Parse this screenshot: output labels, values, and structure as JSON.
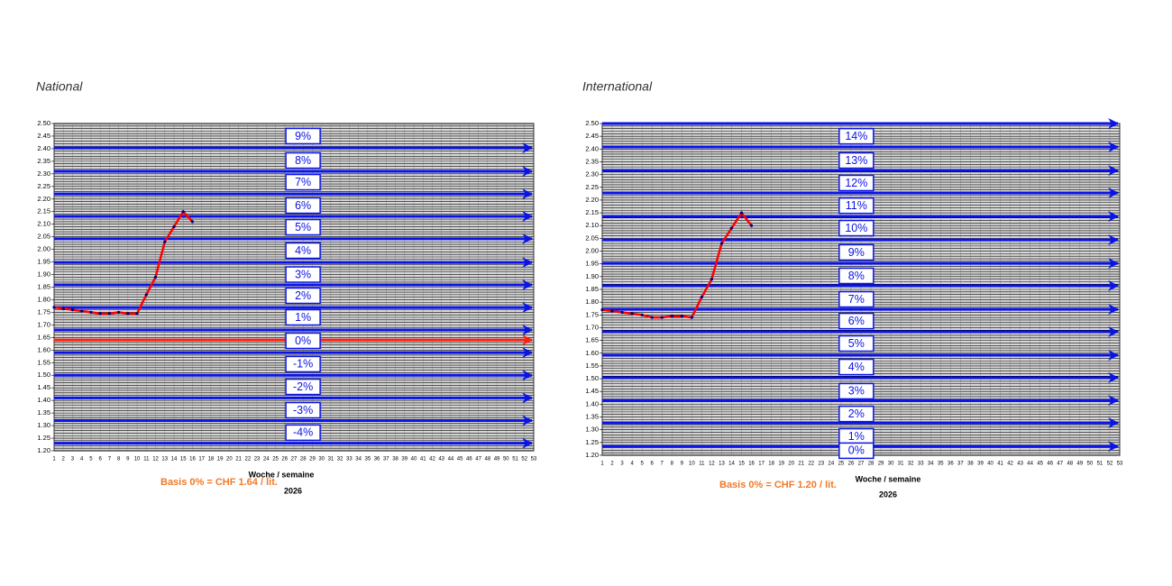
{
  "chart_data": [
    {
      "type": "line",
      "title": "National",
      "xlabel": "Woche / semaine",
      "year": "2026",
      "annotation": "Basis 0% = CHF 1.64 / lit.",
      "x": [
        1,
        2,
        3,
        4,
        5,
        6,
        7,
        8,
        9,
        10,
        11,
        12,
        13,
        14,
        15,
        16
      ],
      "values": [
        1.77,
        1.765,
        1.76,
        1.755,
        1.75,
        1.745,
        1.745,
        1.75,
        1.745,
        1.745,
        1.82,
        1.89,
        2.03,
        2.09,
        2.15,
        2.11
      ],
      "color": "#ff0000",
      "marker_color": "#000080",
      "xlim": [
        1,
        53
      ],
      "xticks": [
        1,
        2,
        3,
        4,
        5,
        6,
        7,
        8,
        9,
        10,
        11,
        12,
        13,
        14,
        15,
        16,
        17,
        18,
        19,
        20,
        21,
        22,
        23,
        24,
        25,
        26,
        27,
        28,
        29,
        30,
        31,
        32,
        33,
        34,
        35,
        36,
        37,
        38,
        39,
        40,
        41,
        42,
        43,
        44,
        45,
        46,
        47,
        48,
        49,
        50,
        51,
        52,
        53
      ],
      "ylim": [
        1.2,
        2.5
      ],
      "yticks": [
        {
          "value": 1.2,
          "label": "1.20"
        },
        1.25,
        {
          "value": 1.3,
          "label": "1.30"
        },
        1.35,
        {
          "value": 1.4,
          "label": "1.40"
        },
        1.45,
        {
          "value": 1.5,
          "label": "1.50"
        },
        1.55,
        {
          "value": 1.6,
          "label": "1.60"
        },
        1.65,
        {
          "value": 1.7,
          "label": "1.70"
        },
        1.75,
        {
          "value": 1.8,
          "label": "1.80"
        },
        1.85,
        {
          "value": 1.9,
          "label": "1.90"
        },
        1.95,
        {
          "value": 2.0,
          "label": "2.00"
        },
        2.05,
        {
          "value": 2.1,
          "label": "2.10"
        },
        2.15,
        {
          "value": 2.2,
          "label": "2.20"
        },
        2.25,
        {
          "value": 2.3,
          "label": "2.30"
        },
        2.35,
        {
          "value": 2.4,
          "label": "2.40"
        },
        2.45,
        {
          "value": 2.5,
          "label": "2.50"
        }
      ],
      "minor_grid_step": 0.01,
      "grid": true,
      "reference_lines": {
        "color": "#0a14e6",
        "values": [
          2.403,
          2.31,
          2.22,
          2.131,
          2.042,
          1.948,
          1.859,
          1.769,
          1.68,
          1.59,
          1.5,
          1.41,
          1.32,
          1.23
        ]
      },
      "basis_line": {
        "color": "#ff2010",
        "value": 1.64
      },
      "level_labels": [
        {
          "label": "9%",
          "y": 2.45
        },
        {
          "label": "8%",
          "y": 2.353
        },
        {
          "label": "7%",
          "y": 2.267
        },
        {
          "label": "6%",
          "y": 2.174
        },
        {
          "label": "5%",
          "y": 2.088
        },
        {
          "label": "4%",
          "y": 1.995
        },
        {
          "label": "3%",
          "y": 1.9
        },
        {
          "label": "2%",
          "y": 1.816
        },
        {
          "label": "1%",
          "y": 1.73
        },
        {
          "label": "0%",
          "y": 1.637
        },
        {
          "label": "-1%",
          "y": 1.544
        },
        {
          "label": "-2%",
          "y": 1.454
        },
        {
          "label": "-3%",
          "y": 1.361
        },
        {
          "label": "-4%",
          "y": 1.272
        }
      ]
    },
    {
      "type": "line",
      "title": "International",
      "xlabel": "Woche / semaine",
      "year": "2026",
      "annotation": "Basis 0% = CHF 1.20 / lit.",
      "x": [
        1,
        2,
        3,
        4,
        5,
        6,
        7,
        8,
        9,
        10,
        11,
        12,
        13,
        14,
        15,
        16
      ],
      "values": [
        1.77,
        1.765,
        1.76,
        1.755,
        1.75,
        1.74,
        1.74,
        1.745,
        1.745,
        1.74,
        1.82,
        1.89,
        2.03,
        2.09,
        2.15,
        2.1
      ],
      "color": "#ff0000",
      "marker_color": "#000080",
      "xlim": [
        1,
        53
      ],
      "xticks": [
        1,
        2,
        3,
        4,
        5,
        6,
        7,
        8,
        9,
        10,
        11,
        12,
        13,
        14,
        15,
        16,
        17,
        18,
        19,
        20,
        21,
        22,
        23,
        24,
        25,
        26,
        27,
        28,
        29,
        30,
        31,
        32,
        33,
        34,
        35,
        36,
        37,
        38,
        39,
        40,
        41,
        42,
        43,
        44,
        45,
        46,
        47,
        48,
        49,
        50,
        51,
        52,
        53
      ],
      "ylim": [
        1.2,
        2.5
      ],
      "yticks": [
        {
          "value": 1.2,
          "label": "1.20"
        },
        1.25,
        {
          "value": 1.3,
          "label": "1.30"
        },
        1.35,
        {
          "value": 1.4,
          "label": "1.40"
        },
        1.45,
        {
          "value": 1.5,
          "label": "1.50"
        },
        1.55,
        {
          "value": 1.6,
          "label": "1.60"
        },
        1.65,
        {
          "value": 1.7,
          "label": "1.70"
        },
        1.75,
        {
          "value": 1.8,
          "label": "1.80"
        },
        1.85,
        {
          "value": 1.9,
          "label": "1.90"
        },
        1.95,
        {
          "value": 2.0,
          "label": "2.00"
        },
        2.05,
        {
          "value": 2.1,
          "label": "2.10"
        },
        2.15,
        {
          "value": 2.2,
          "label": "2.20"
        },
        2.25,
        {
          "value": 2.3,
          "label": "2.30"
        },
        2.35,
        {
          "value": 2.4,
          "label": "2.40"
        },
        2.45,
        {
          "value": 2.5,
          "label": "2.50"
        }
      ],
      "minor_grid_step": 0.01,
      "grid": true,
      "reference_lines": {
        "color": "#0a14e6",
        "values": [
          2.5,
          2.408,
          2.316,
          2.228,
          2.136,
          2.044,
          1.952,
          1.864,
          1.772,
          1.684,
          1.592,
          1.504,
          1.415,
          1.327,
          1.235
        ]
      },
      "level_labels": [
        {
          "label": "14%",
          "y": 2.45
        },
        {
          "label": "13%",
          "y": 2.355
        },
        {
          "label": "12%",
          "y": 2.267
        },
        {
          "label": "11%",
          "y": 2.178
        },
        {
          "label": "10%",
          "y": 2.09
        },
        {
          "label": "9%",
          "y": 1.995
        },
        {
          "label": "8%",
          "y": 1.903
        },
        {
          "label": "7%",
          "y": 1.811
        },
        {
          "label": "6%",
          "y": 1.726
        },
        {
          "label": "5%",
          "y": 1.638
        },
        {
          "label": "4%",
          "y": 1.546
        },
        {
          "label": "3%",
          "y": 1.451
        },
        {
          "label": "2%",
          "y": 1.362
        },
        {
          "label": "1%",
          "y": 1.274
        },
        {
          "label": "0%",
          "y": 1.218
        }
      ]
    }
  ]
}
